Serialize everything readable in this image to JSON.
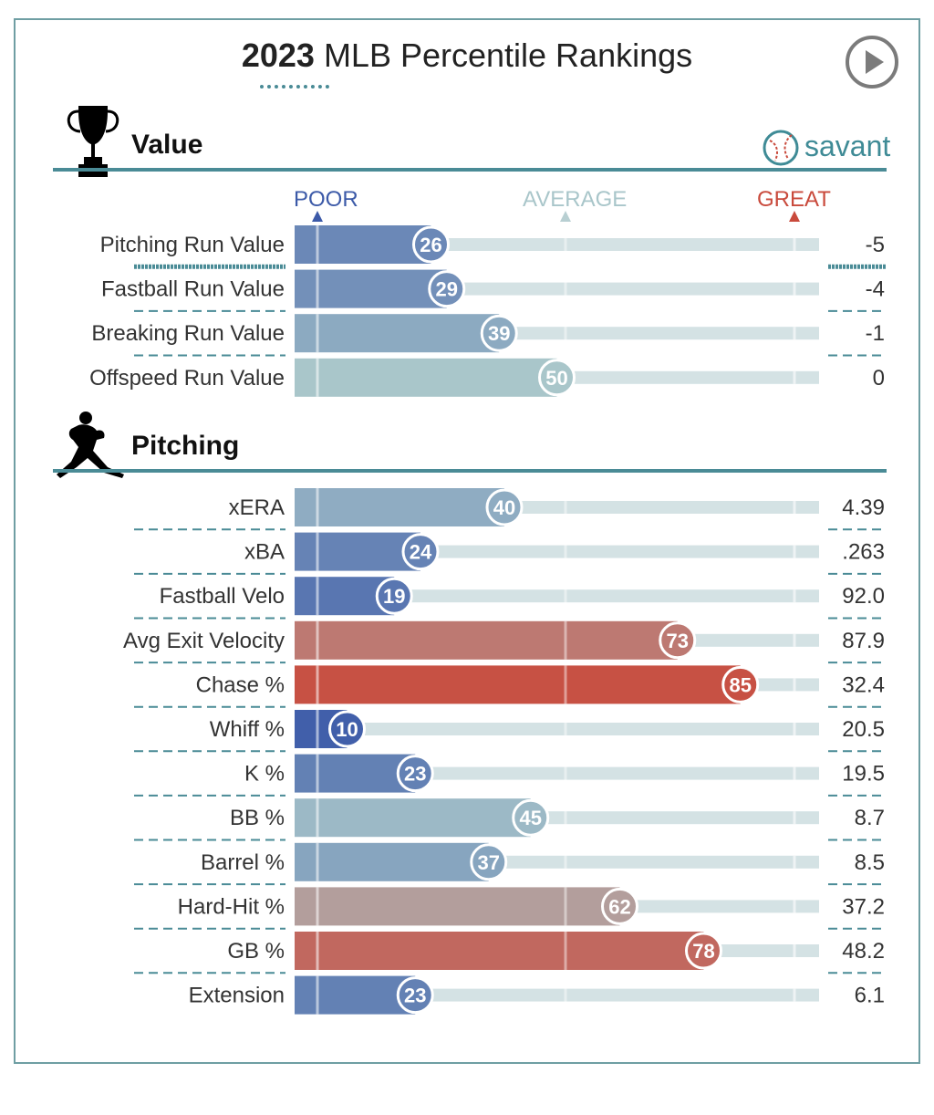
{
  "page": {
    "title_year": "2023",
    "title_rest": " MLB Percentile Rankings",
    "brand": "savant",
    "legend": {
      "poor": "POOR",
      "average": "AVERAGE",
      "great": "GREAT"
    },
    "colors": {
      "accent": "#4a8b96",
      "poor": "#3c5aa8",
      "average": "#a9c6ca",
      "great": "#c94a3c",
      "track": "#d4e2e4"
    }
  },
  "chart_data": [
    {
      "type": "bar",
      "title": "Value",
      "xlim": [
        0,
        100
      ],
      "categories": [
        "Pitching Run Value",
        "Fastball Run Value",
        "Breaking Run Value",
        "Offspeed Run Value"
      ],
      "percentiles": [
        26,
        29,
        39,
        50
      ],
      "values": [
        "-5",
        "-4",
        "-1",
        "0"
      ]
    },
    {
      "type": "bar",
      "title": "Pitching",
      "xlim": [
        0,
        100
      ],
      "categories": [
        "xERA",
        "xBA",
        "Fastball Velo",
        "Avg Exit Velocity",
        "Chase %",
        "Whiff %",
        "K %",
        "BB %",
        "Barrel %",
        "Hard-Hit %",
        "GB %",
        "Extension"
      ],
      "percentiles": [
        40,
        24,
        19,
        73,
        85,
        10,
        23,
        45,
        37,
        62,
        78,
        23
      ],
      "values": [
        "4.39",
        ".263",
        "92.0",
        "87.9",
        "32.4",
        "20.5",
        "19.5",
        "8.7",
        "8.5",
        "37.2",
        "48.2",
        "6.1"
      ]
    }
  ]
}
